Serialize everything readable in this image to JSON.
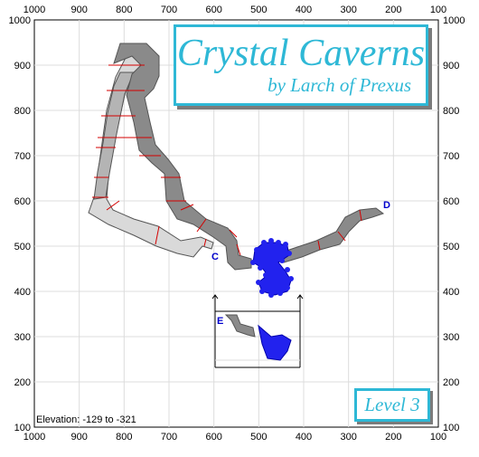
{
  "title": "Crystal Caverns",
  "subtitle": "by Larch of Prexus",
  "level_label": "Level 3",
  "elevation_label": "Elevation: -129 to -321",
  "axes": {
    "x_ticks": [
      "1000",
      "900",
      "800",
      "700",
      "600",
      "500",
      "400",
      "300",
      "200",
      "100"
    ],
    "y_ticks": [
      "1000",
      "900",
      "800",
      "700",
      "600",
      "500",
      "400",
      "300",
      "200",
      "100"
    ]
  },
  "markers": [
    {
      "label": "C",
      "color": "#0000cc"
    },
    {
      "label": "D",
      "color": "#0000cc"
    },
    {
      "label": "E",
      "color": "#0000cc"
    }
  ],
  "colors": {
    "title": "#2eb8d6",
    "grid": "#dcdcdc",
    "passage_dark": "#8a8a8a",
    "passage_mid": "#b4b4b4",
    "passage_light": "#d9d9d9",
    "section_line": "#d40000",
    "spiral": "#2222ee"
  }
}
